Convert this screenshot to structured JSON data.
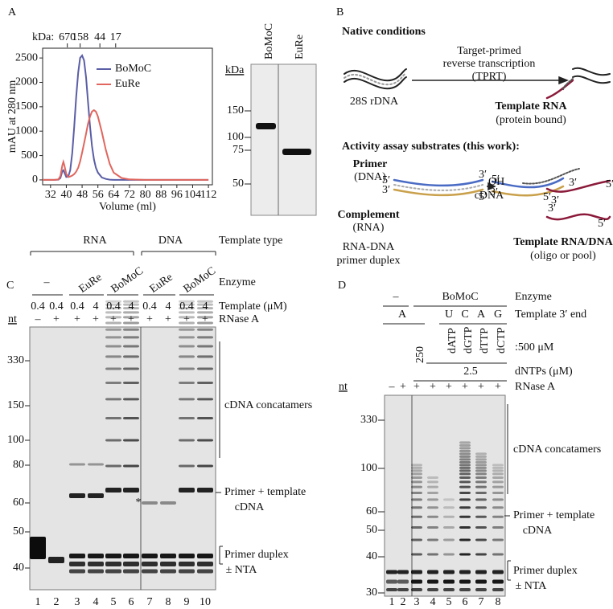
{
  "panel_a": {
    "label": "A",
    "chromatogram": {
      "type": "line",
      "y_label": "mAU at 280 nm",
      "x_label": "Volume (ml)",
      "top_axis_label": "kDa:",
      "top_ticks": [
        {
          "value": 40.5,
          "label": "670"
        },
        {
          "value": 47,
          "label": "158"
        },
        {
          "value": 57,
          "label": "44"
        },
        {
          "value": 65,
          "label": "17"
        }
      ],
      "xlim": [
        28,
        114
      ],
      "xticks": [
        32,
        40,
        48,
        56,
        64,
        72,
        80,
        88,
        96,
        104,
        112
      ],
      "ylim": [
        -100,
        2700
      ],
      "yticks": [
        0,
        500,
        1000,
        1500,
        2000,
        2500
      ],
      "x": [
        28,
        34,
        36,
        37,
        38,
        38.5,
        39,
        40,
        41,
        42,
        43,
        44,
        45,
        46,
        47,
        48,
        49,
        50,
        51,
        52,
        53,
        54,
        55,
        56,
        58,
        60,
        62,
        64,
        68,
        72,
        80,
        90,
        100,
        112
      ],
      "series": [
        {
          "name": "BoMoC",
          "color": "#5b5ea6",
          "values": [
            0,
            0,
            5,
            40,
            180,
            200,
            150,
            60,
            70,
            200,
            550,
            1100,
            1700,
            2200,
            2500,
            2550,
            2450,
            2100,
            1600,
            1100,
            700,
            420,
            250,
            150,
            50,
            20,
            5,
            0,
            0,
            0,
            0,
            0,
            0,
            0
          ]
        },
        {
          "name": "EuRe",
          "color": "#e0665e",
          "values": [
            0,
            0,
            10,
            80,
            300,
            370,
            300,
            120,
            60,
            70,
            90,
            120,
            170,
            250,
            380,
            560,
            750,
            950,
            1150,
            1300,
            1400,
            1430,
            1400,
            1300,
            980,
            620,
            330,
            150,
            40,
            10,
            0,
            0,
            0,
            0
          ]
        }
      ]
    },
    "gel": {
      "unit": "kDa",
      "lanes": [
        "BoMoC",
        "EuRe"
      ],
      "markers": [
        "150",
        "100",
        "75",
        "50"
      ]
    }
  },
  "panel_b": {
    "label": "B",
    "native_title": "Native conditions",
    "dna_label": "28S rDNA",
    "process": [
      "Target-primed",
      "reverse transcription",
      "(TPRT)"
    ],
    "template": "Template RNA",
    "template_note": "(protein bound)",
    "assay_title": "Activity assay substrates (this work):",
    "primer": [
      "Primer",
      "(DNA)"
    ],
    "complement": [
      "Complement",
      "(RNA)"
    ],
    "duplex": [
      "RNA-DNA",
      "primer duplex"
    ],
    "cdna": "cDNA",
    "assay_template": "Template RNA/DNA",
    "assay_template_note": "(oligo or pool)",
    "ends": {
      "five": "5′",
      "three": "3′",
      "oh": "OH"
    }
  },
  "panel_c": {
    "label": "C",
    "template_types": [
      "RNA",
      "DNA"
    ],
    "template_type_label": "Template type",
    "enzymes": [
      "–",
      "EuRe",
      "BoMoC",
      "EuRe",
      "BoMoC"
    ],
    "enzyme_label": "Enzyme",
    "template_conc": [
      "0.4",
      "0.4",
      "0.4",
      "4",
      "0.4",
      "4",
      "0.4",
      "4",
      "0.4",
      "4"
    ],
    "template_conc_label": "Template (μM)",
    "rnase": [
      "–",
      "+",
      "+",
      "+",
      "+",
      "+",
      "+",
      "+",
      "+",
      "+"
    ],
    "rnase_label": "RNase A",
    "size_unit": "nt",
    "markers": [
      "330",
      "150",
      "100",
      "80",
      "60",
      "50",
      "40"
    ],
    "concatamers": "cDNA concatamers",
    "primer_template": [
      "Primer + template",
      "cDNA"
    ],
    "primer_duplex": [
      "Primer duplex",
      "± NTA"
    ],
    "asterisk": "*",
    "lanes": [
      "1",
      "2",
      "3",
      "4",
      "5",
      "6",
      "7",
      "8",
      "9",
      "10"
    ]
  },
  "panel_d": {
    "label": "D",
    "enzymes": [
      "–",
      "BoMoC"
    ],
    "enzyme_label": "Enzyme",
    "template_ends": [
      "A",
      "U",
      "C",
      "A",
      "G"
    ],
    "template_end_label": "Template 3′ end",
    "single_dntps": [
      "dATP",
      "dGTP",
      "dTTP",
      "dCTP"
    ],
    "single_dntp_conc": ":500 μM",
    "dntp_conc": [
      "250",
      "2.5"
    ],
    "dntp_label": "dNTPs (μM)",
    "rnase": [
      "–",
      "+",
      "+",
      "+",
      "+",
      "+",
      "+",
      "+"
    ],
    "rnase_label": "RNase A",
    "size_unit": "nt",
    "markers": [
      "330",
      "100",
      "60",
      "50",
      "40",
      "30"
    ],
    "concatamers": "cDNA concatamers",
    "primer_template": [
      "Primer + template",
      "cDNA"
    ],
    "primer_duplex": [
      "Primer duplex",
      "± NTA"
    ],
    "lanes": [
      "1",
      "2",
      "3",
      "4",
      "5",
      "6",
      "7",
      "8"
    ]
  }
}
